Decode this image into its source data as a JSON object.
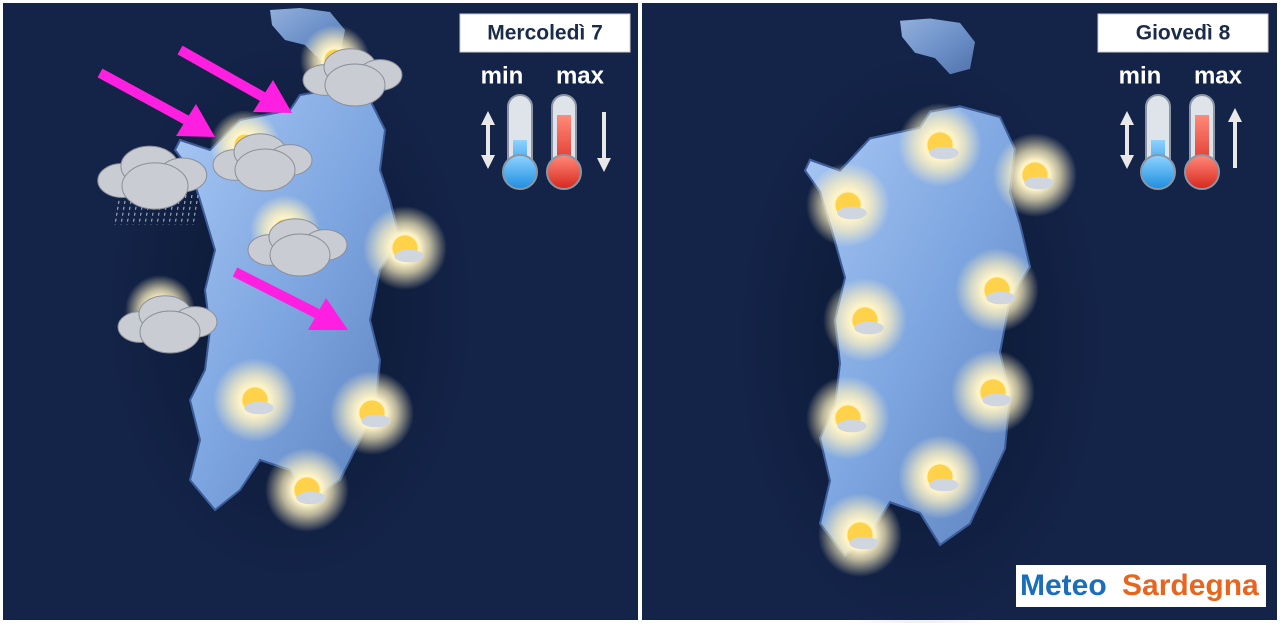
{
  "panels": [
    {
      "day": "Mercoledì 7",
      "min_label": "min",
      "max_label": "max"
    },
    {
      "day": "Giovedì 8",
      "min_label": "min",
      "max_label": "max"
    }
  ],
  "logo": {
    "word1": "Meteo",
    "word2": "Sardegna"
  }
}
